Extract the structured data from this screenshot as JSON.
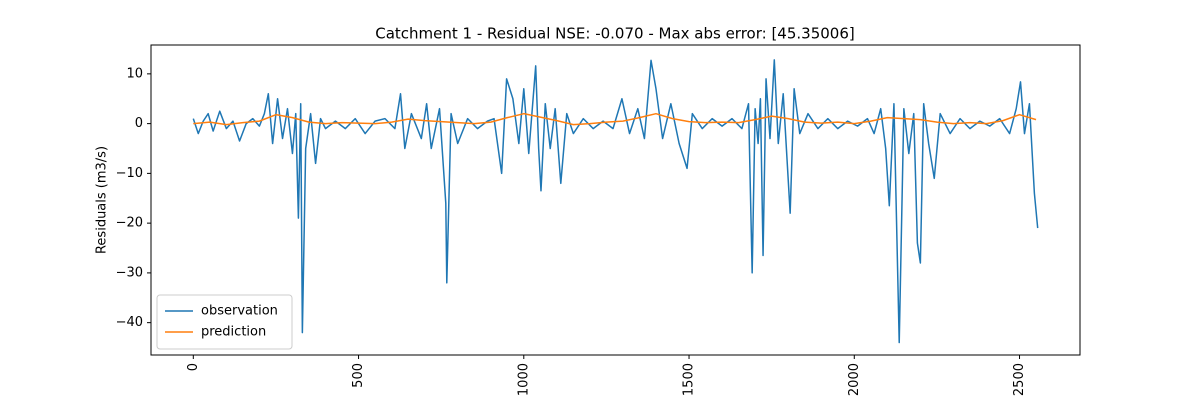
{
  "chart_data": {
    "type": "line",
    "title": "Catchment 1 - Residual NSE: -0.070 - Max abs error: [45.35006]",
    "y_label": "Residuals (m3/s)",
    "xlim": [
      -128,
      2683
    ],
    "ylim": [
      -46.5,
      15.8
    ],
    "xticks": [
      0,
      500,
      1000,
      1500,
      2000,
      2500
    ],
    "yticks": [
      {
        "value": -40,
        "label": "−40"
      },
      {
        "value": -30,
        "label": "−30"
      },
      {
        "value": -20,
        "label": "−20"
      },
      {
        "value": -10,
        "label": "−10"
      },
      0,
      10
    ],
    "legend": "lower left",
    "series": [
      {
        "name": "observation",
        "color": "#1f77b4",
        "x": [
          0,
          15,
          30,
          45,
          60,
          80,
          100,
          120,
          140,
          160,
          180,
          200,
          215,
          227,
          240,
          255,
          270,
          285,
          300,
          310,
          318,
          325,
          330,
          340,
          355,
          370,
          385,
          400,
          430,
          460,
          490,
          520,
          550,
          580,
          610,
          627,
          640,
          660,
          690,
          706,
          720,
          745,
          764,
          767,
          780,
          800,
          830,
          860,
          890,
          910,
          933,
          948,
          967,
          985,
          1000,
          1015,
          1036,
          1045,
          1052,
          1065,
          1080,
          1095,
          1112,
          1130,
          1150,
          1180,
          1210,
          1240,
          1270,
          1297,
          1320,
          1345,
          1365,
          1385,
          1400,
          1420,
          1445,
          1470,
          1494,
          1510,
          1540,
          1570,
          1600,
          1630,
          1660,
          1680,
          1691,
          1700,
          1709,
          1716,
          1724,
          1733,
          1745,
          1758,
          1770,
          1785,
          1806,
          1818,
          1835,
          1860,
          1890,
          1920,
          1950,
          1980,
          2010,
          2040,
          2060,
          2080,
          2095,
          2106,
          2120,
          2136,
          2150,
          2165,
          2180,
          2191,
          2200,
          2210,
          2225,
          2242,
          2260,
          2290,
          2320,
          2350,
          2380,
          2410,
          2440,
          2470,
          2490,
          2503,
          2515,
          2530,
          2545,
          2555
        ],
        "values": [
          1,
          -2,
          0.5,
          2,
          -1.5,
          2.5,
          -1,
          0.5,
          -3.5,
          0,
          1,
          -0.5,
          2,
          6,
          -4,
          5,
          -3,
          3,
          -6,
          2,
          -19,
          4,
          -42,
          -5,
          2,
          -8,
          1,
          -1,
          0.5,
          -1,
          1,
          -2,
          0.5,
          1,
          -1,
          6,
          -5,
          2,
          -3,
          4,
          -5,
          3,
          -16,
          -32,
          2,
          -4,
          1,
          -1,
          0.5,
          1,
          -10,
          9,
          5,
          -4,
          7,
          -6,
          11.6,
          -5,
          -13.5,
          4,
          -5,
          3,
          -12,
          2,
          -2,
          1,
          -1,
          0.5,
          -1,
          5,
          -2,
          3,
          -3,
          12.7,
          7,
          -3,
          4,
          -4,
          -9,
          2,
          -1,
          1,
          -0.5,
          1,
          -1,
          4,
          -30,
          3,
          -4,
          5,
          -26.5,
          9,
          -3,
          12.8,
          -4,
          6,
          -18,
          7,
          -2,
          2,
          -1,
          1,
          -1,
          0.5,
          -0.5,
          1,
          -2,
          3,
          -5,
          -16.5,
          4,
          -44,
          3,
          -6,
          2,
          -24,
          -28,
          4,
          -4,
          -11,
          2,
          -2,
          1,
          -1,
          0.5,
          -0.5,
          1,
          -2,
          3,
          8.4,
          -2,
          4,
          -14,
          -21
        ]
      },
      {
        "name": "prediction",
        "color": "#ff7f0e",
        "x": [
          0,
          50,
          100,
          150,
          200,
          250,
          300,
          350,
          400,
          450,
          500,
          550,
          600,
          650,
          700,
          750,
          800,
          850,
          900,
          950,
          1000,
          1050,
          1100,
          1150,
          1200,
          1250,
          1300,
          1350,
          1400,
          1450,
          1500,
          1550,
          1600,
          1650,
          1700,
          1750,
          1800,
          1850,
          1900,
          1950,
          2000,
          2050,
          2100,
          2150,
          2200,
          2250,
          2300,
          2350,
          2400,
          2450,
          2500,
          2550
        ],
        "values": [
          0,
          0.3,
          -0.2,
          0.2,
          0.5,
          1.8,
          1.2,
          0.3,
          0,
          0.2,
          0.1,
          0,
          0.3,
          0.9,
          0.6,
          0.4,
          0.2,
          0,
          0.3,
          1.2,
          2,
          1.3,
          0.6,
          -0.2,
          0,
          0.3,
          0.5,
          1.2,
          2,
          1,
          0.4,
          0.2,
          0.3,
          0.2,
          0.8,
          1.5,
          1,
          0.3,
          0.1,
          0.3,
          0,
          0.5,
          1.2,
          1,
          0.8,
          0.3,
          0,
          0.2,
          0,
          0.6,
          1.8,
          0.8
        ]
      }
    ]
  }
}
